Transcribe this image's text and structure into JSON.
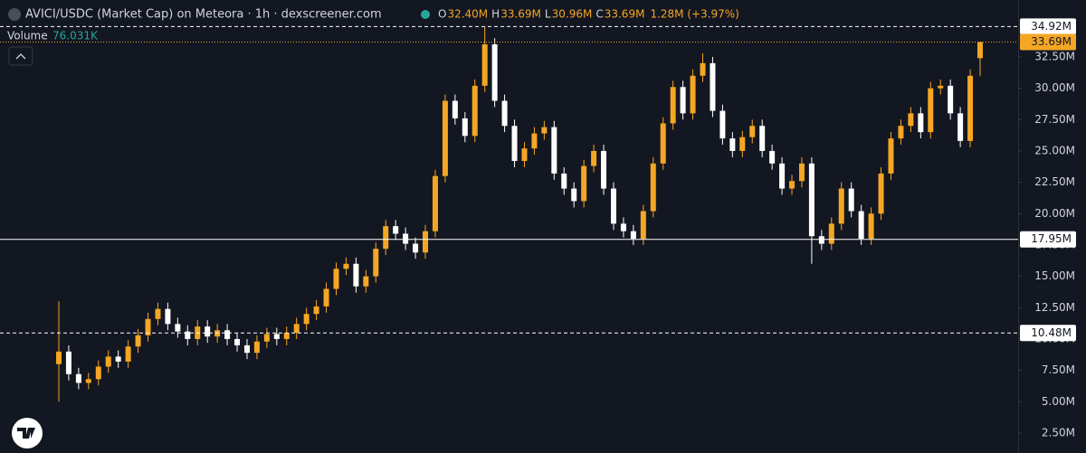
{
  "chart_data": {
    "type": "candlestick",
    "title": "AVICI/USDC (Market Cap) on Meteora · 1h · dexscreener.com",
    "legend_items": [
      {
        "key": "O",
        "text": "32.40M"
      },
      {
        "key": "H",
        "text": "33.69M"
      },
      {
        "key": "L",
        "text": "30.96M"
      },
      {
        "key": "C",
        "text": "33.69M"
      }
    ],
    "change_text": "1.28M (+3.97%)",
    "volume_label": "Volume",
    "volume_text": "76.031K",
    "up_color": "#f5a623",
    "down_color": "#ffffff",
    "open": [
      8.0,
      9.0,
      7.2,
      6.5,
      6.8,
      7.8,
      8.6,
      8.2,
      9.4,
      10.3,
      11.6,
      12.4,
      11.2,
      10.6,
      10.0,
      11.0,
      10.2,
      10.7,
      10.0,
      9.5,
      8.9,
      9.8,
      10.4,
      10.0,
      10.5,
      11.2,
      12.0,
      12.6,
      14.0,
      15.6,
      16.0,
      14.2,
      15.0,
      17.2,
      19.0,
      18.4,
      17.6,
      16.9,
      18.6,
      23.0,
      29.0,
      27.6,
      26.2,
      30.2,
      33.5,
      29.0,
      27.0,
      24.2,
      25.2,
      26.4,
      26.9,
      23.2,
      22.0,
      21.0,
      23.8,
      25.0,
      22.0,
      19.2,
      18.6,
      18.0,
      20.2,
      24.0,
      27.2,
      30.1,
      28.0,
      31.0,
      32.0,
      28.2,
      26.0,
      25.0,
      26.1,
      27.0,
      25.0,
      24.0,
      22.0,
      22.6,
      24.0,
      18.2,
      17.6,
      19.2,
      22.0,
      20.2,
      18.0,
      20.0,
      23.2,
      26.0,
      27.0,
      28.0,
      26.5,
      30.0,
      30.2,
      28.0,
      25.8,
      32.4
    ],
    "high": [
      13.0,
      9.5,
      7.7,
      7.3,
      8.3,
      9.1,
      9.1,
      9.9,
      10.8,
      12.1,
      12.9,
      12.9,
      11.7,
      11.1,
      11.5,
      11.5,
      11.2,
      11.2,
      10.5,
      10.0,
      10.3,
      10.9,
      10.9,
      11.0,
      11.7,
      12.5,
      13.1,
      14.5,
      16.1,
      16.5,
      16.5,
      15.5,
      17.7,
      19.5,
      19.5,
      18.9,
      18.1,
      19.1,
      23.5,
      29.5,
      29.5,
      28.1,
      30.7,
      34.92,
      34.0,
      29.5,
      27.5,
      25.7,
      26.9,
      27.4,
      27.4,
      23.7,
      22.5,
      24.3,
      25.5,
      25.5,
      22.5,
      19.7,
      19.1,
      20.7,
      24.5,
      27.7,
      30.6,
      30.6,
      31.5,
      32.8,
      32.5,
      28.7,
      26.5,
      26.6,
      27.5,
      27.5,
      25.5,
      24.5,
      23.1,
      24.5,
      24.5,
      18.7,
      19.7,
      22.5,
      22.5,
      20.7,
      20.5,
      23.7,
      26.5,
      27.5,
      28.5,
      28.5,
      30.5,
      30.7,
      30.7,
      28.5,
      31.5,
      33.69
    ],
    "low": [
      5.0,
      6.7,
      6.0,
      6.0,
      6.3,
      7.3,
      7.7,
      7.7,
      8.9,
      9.8,
      11.1,
      10.7,
      10.1,
      9.5,
      9.5,
      9.7,
      9.7,
      9.5,
      9.0,
      8.4,
      8.4,
      9.3,
      9.5,
      9.5,
      10.0,
      10.7,
      11.5,
      12.1,
      13.5,
      15.1,
      13.7,
      13.7,
      14.5,
      16.7,
      17.9,
      17.1,
      16.4,
      16.4,
      18.1,
      22.5,
      27.1,
      25.7,
      25.7,
      29.7,
      28.5,
      26.5,
      23.7,
      23.7,
      24.7,
      25.9,
      22.7,
      21.5,
      20.5,
      20.5,
      23.3,
      21.5,
      18.7,
      18.1,
      17.5,
      17.5,
      19.7,
      23.5,
      26.7,
      27.5,
      27.5,
      30.5,
      27.7,
      25.5,
      24.5,
      24.5,
      25.6,
      24.5,
      23.5,
      21.5,
      21.5,
      22.1,
      16.0,
      17.1,
      17.1,
      18.7,
      19.7,
      17.5,
      17.5,
      19.5,
      22.7,
      25.5,
      26.5,
      26.0,
      26.0,
      29.5,
      27.5,
      25.3,
      25.3,
      30.96
    ],
    "close": [
      9.0,
      7.2,
      6.5,
      6.8,
      7.8,
      8.6,
      8.2,
      9.4,
      10.3,
      11.6,
      12.4,
      11.2,
      10.6,
      10.0,
      11.0,
      10.2,
      10.7,
      10.0,
      9.5,
      8.9,
      9.8,
      10.4,
      10.0,
      10.5,
      11.2,
      12.0,
      12.6,
      14.0,
      15.6,
      16.0,
      14.2,
      15.0,
      17.2,
      19.0,
      18.4,
      17.6,
      16.9,
      18.6,
      23.0,
      29.0,
      27.6,
      26.2,
      30.2,
      33.5,
      29.0,
      27.0,
      24.2,
      25.2,
      26.4,
      26.9,
      23.2,
      22.0,
      21.0,
      23.8,
      25.0,
      22.0,
      19.2,
      18.6,
      18.0,
      20.2,
      24.0,
      27.2,
      30.1,
      28.0,
      31.0,
      32.0,
      28.2,
      26.0,
      25.0,
      26.1,
      27.0,
      25.0,
      24.0,
      22.0,
      22.6,
      24.0,
      18.2,
      17.6,
      19.2,
      22.0,
      20.2,
      18.0,
      20.0,
      23.2,
      26.0,
      27.0,
      28.0,
      26.5,
      30.0,
      30.2,
      28.0,
      25.8,
      31.0,
      33.69
    ],
    "ylim": [
      0.91,
      37.04
    ],
    "yticks": [
      {
        "value": 2.5,
        "label": "2.50M"
      },
      {
        "value": 5,
        "label": "5.00M"
      },
      {
        "value": 7.5,
        "label": "7.50M"
      },
      {
        "value": 10,
        "label": "10.00M"
      },
      {
        "value": 12.5,
        "label": "12.50M"
      },
      {
        "value": 15,
        "label": "15.00M"
      },
      {
        "value": 17.5,
        "label": "17.50M"
      },
      {
        "value": 20,
        "label": "20.00M"
      },
      {
        "value": 22.5,
        "label": "22.50M"
      },
      {
        "value": 25,
        "label": "25.00M"
      },
      {
        "value": 27.5,
        "label": "27.50M"
      },
      {
        "value": 30,
        "label": "30.00M"
      },
      {
        "value": 32.5,
        "label": "32.50M"
      }
    ],
    "price_lines": [
      {
        "value": 34.92,
        "label": "34.92M",
        "style": "dashed",
        "color": "#ffffff"
      },
      {
        "value": 33.69,
        "label": "33.69M",
        "style": "dotted",
        "color": "#f5a623"
      },
      {
        "value": 17.95,
        "label": "17.95M",
        "style": "solid",
        "color": "#ffffff"
      },
      {
        "value": 10.48,
        "label": "10.48M",
        "style": "dashed",
        "color": "#ffffff"
      }
    ]
  }
}
